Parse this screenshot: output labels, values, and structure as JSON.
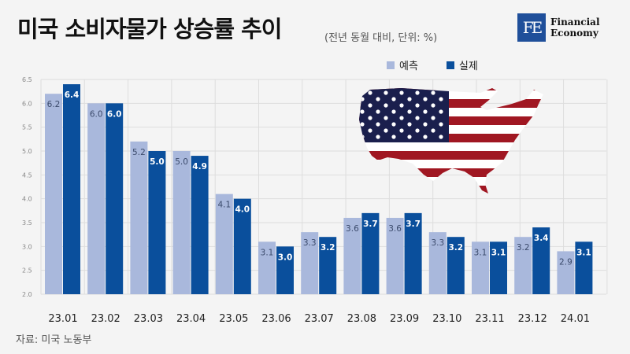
{
  "header": {
    "title": "미국 소비자물가 상승률 추이",
    "subtitle": "(전년 동월 대비, 단위: %)"
  },
  "logo": {
    "mark": "FE",
    "line1": "Financial",
    "line2": "Economy"
  },
  "source": "자료: 미국 노동부",
  "colors": {
    "forecast": "#a9b8dc",
    "actual": "#0a4f9c",
    "grid": "#dddddd",
    "background": "#f4f4f4"
  },
  "chart_data": {
    "type": "bar",
    "title": "미국 소비자물가 상승률 추이",
    "subtitle": "(전년 동월 대비, 단위: %)",
    "categories": [
      "23.01",
      "23.02",
      "23.03",
      "23.04",
      "23.05",
      "23.06",
      "23.07",
      "23.08",
      "23.09",
      "23.10",
      "23.11",
      "23.12",
      "24.01"
    ],
    "series": [
      {
        "name": "예측",
        "values": [
          6.2,
          6.0,
          5.2,
          5.0,
          4.1,
          3.1,
          3.3,
          3.6,
          3.6,
          3.3,
          3.1,
          3.2,
          2.9
        ]
      },
      {
        "name": "실제",
        "values": [
          6.4,
          6.0,
          5.0,
          4.9,
          4.0,
          3.0,
          3.2,
          3.7,
          3.7,
          3.2,
          3.1,
          3.4,
          3.1
        ]
      }
    ],
    "ylim": [
      2.0,
      6.5
    ],
    "yticks": [
      "2.0",
      "2.5",
      "3.0",
      "3.5",
      "4.0",
      "4.5",
      "5.0",
      "5.5",
      "6.0",
      "6.5"
    ],
    "grid": true,
    "legend": "top-right",
    "xlabel": "",
    "ylabel": ""
  }
}
